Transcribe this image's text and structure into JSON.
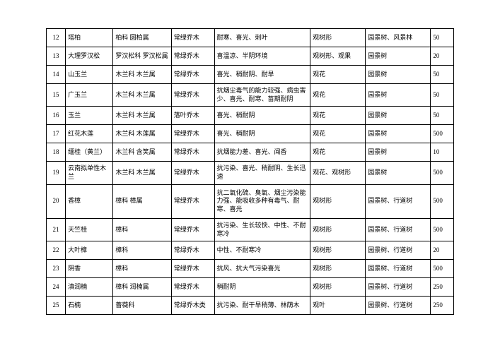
{
  "table": {
    "columns": [
      {
        "key": "num",
        "class": "col1"
      },
      {
        "key": "name",
        "class": "col2"
      },
      {
        "key": "family",
        "class": "col3"
      },
      {
        "key": "type",
        "class": "col4"
      },
      {
        "key": "features",
        "class": "col5"
      },
      {
        "key": "ornamental",
        "class": "col6"
      },
      {
        "key": "use",
        "class": "col7"
      },
      {
        "key": "qty",
        "class": "col8"
      }
    ],
    "rows": [
      {
        "num": "12",
        "name": "塔柏",
        "family": "柏科 圆柏属",
        "type": "常绿乔木",
        "features": "耐寒、喜光、刺叶",
        "ornamental": "观树形",
        "use": "园景树、风景林",
        "qty": "50"
      },
      {
        "num": "13",
        "name": "大理罗汉松",
        "family": "罗汉松科 罗汉松属",
        "type": "常绿乔木",
        "features": "喜温凉、半阴环境",
        "ornamental": "观树形、观果",
        "use": "园景树",
        "qty": "20"
      },
      {
        "num": "14",
        "name": "山玉兰",
        "family": "木兰科 木兰属",
        "type": "常绿乔木",
        "features": "喜光、稍耐阴、耐旱",
        "ornamental": "观花",
        "use": "园景树",
        "qty": "50"
      },
      {
        "num": "15",
        "name": "广玉兰",
        "family": "木兰科 木兰属",
        "type": "常绿乔木",
        "features": "抗烟尘毒气的能力较强、病虫害少、喜光、耐寒、苗期耐阴",
        "ornamental": "观花",
        "use": "园景树",
        "qty": "50"
      },
      {
        "num": "16",
        "name": "玉兰",
        "family": "木兰科 木兰属",
        "type": "落叶乔木",
        "features": "喜光、稍耐阴",
        "ornamental": "观花",
        "use": "园景树",
        "qty": "50"
      },
      {
        "num": "17",
        "name": "红花木莲",
        "family": "木兰科 木莲属",
        "type": "常绿乔木",
        "features": "喜光、稍耐阴",
        "ornamental": "观花",
        "use": "园景树",
        "qty": "500"
      },
      {
        "num": "18",
        "name": "缅桂（黄兰）",
        "family": "木兰科 含笑属",
        "type": "常绿乔木",
        "features": "抗烟能力差、喜光、闻香",
        "ornamental": "观花",
        "use": "园景树",
        "qty": "10"
      },
      {
        "num": "19",
        "name": "云南拟单性木兰",
        "family": "木兰科 木兰属",
        "type": "常绿乔木",
        "features": "抗污染、喜光、稍耐阴、生长迅速",
        "ornamental": "观花、观树形",
        "use": "园景树",
        "qty": "500"
      },
      {
        "num": "20",
        "name": "香樟",
        "family": "樟科 樟属",
        "type": "常绿乔木",
        "features": "抗二氧化硫、臭氧、烟尘污染能力强、能吸收多种有毒气、耐寒、喜光",
        "ornamental": "观树形",
        "use": "园景树、行道树",
        "qty": "500"
      },
      {
        "num": "21",
        "name": "天竺桂",
        "family": "樟科",
        "type": "常绿乔木",
        "features": "抗污染、生长较快、中性、不耐寒冷",
        "ornamental": "观树形",
        "use": "园景树、行道树",
        "qty": "500"
      },
      {
        "num": "22",
        "name": "大叶樟",
        "family": "樟科",
        "type": "常绿乔木",
        "features": "中性、不耐寒冷",
        "ornamental": "观树形",
        "use": "园景树、行道树",
        "qty": "20"
      },
      {
        "num": "23",
        "name": "阴香",
        "family": "樟科",
        "type": "常绿乔木",
        "features": "抗风、抗大气污染喜光",
        "ornamental": "观树形",
        "use": "园景树、行道树",
        "qty": "500"
      },
      {
        "num": "24",
        "name": "滇润楠",
        "family": "樟科 润楠属",
        "type": "常绿乔木",
        "features": "稍耐阴",
        "ornamental": "观树形",
        "use": "园景树、行道树",
        "qty": "250"
      },
      {
        "num": "25",
        "name": "石楠",
        "family": "蔷薇科",
        "type": "常绿乔木类",
        "features": "抗污染、耐干旱稍薄、林荫木",
        "ornamental": "观叶",
        "use": "园景树、行道树",
        "qty": "250"
      }
    ]
  }
}
